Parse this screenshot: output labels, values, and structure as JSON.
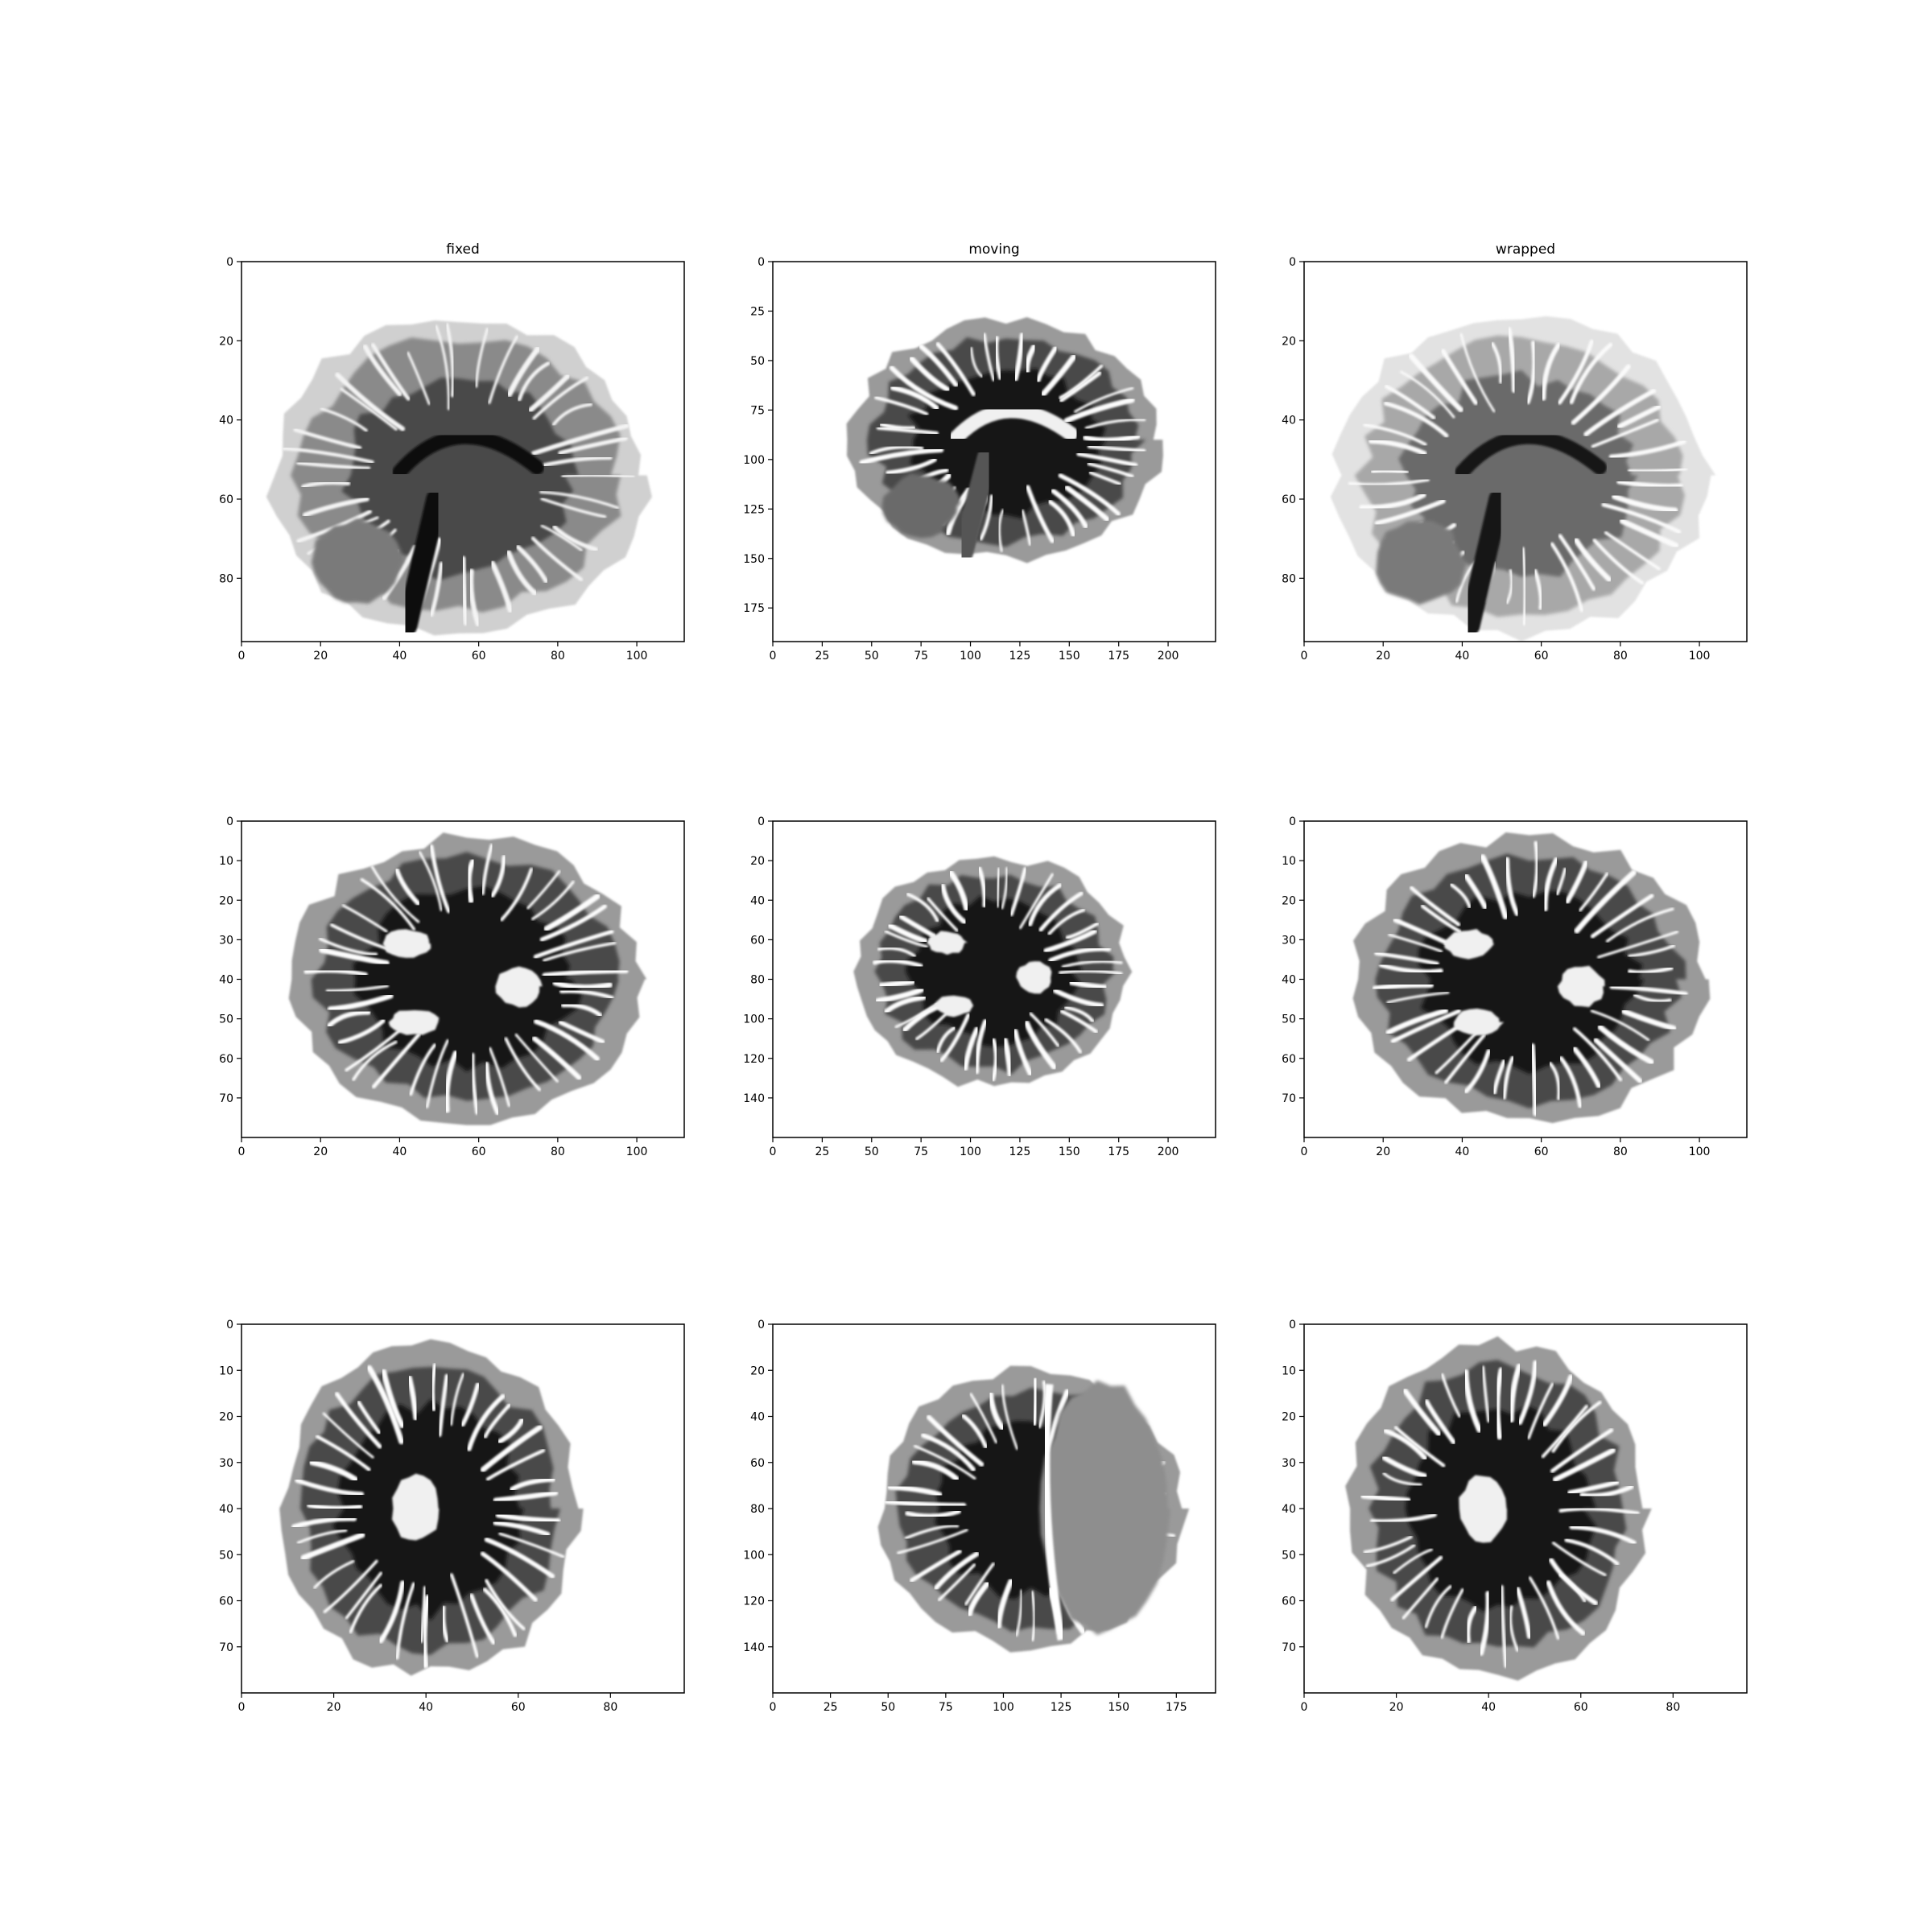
{
  "chart_data": [
    {
      "type": "image",
      "title": "fixed",
      "xlim": [
        0,
        112
      ],
      "ylim": [
        96,
        0
      ],
      "xticks": [
        0,
        20,
        40,
        60,
        80,
        100
      ],
      "yticks": [
        0,
        20,
        40,
        60,
        80
      ],
      "xlabel": "",
      "ylabel": "",
      "content": {
        "view": "sagittal",
        "contrast": "t1",
        "center": [
          55,
          54
        ],
        "radius": [
          47,
          40
        ]
      }
    },
    {
      "type": "image",
      "title": "moving",
      "xlim": [
        0,
        224
      ],
      "ylim": [
        192,
        0
      ],
      "xticks": [
        0,
        25,
        50,
        75,
        100,
        125,
        150,
        175,
        200
      ],
      "yticks": [
        0,
        25,
        50,
        75,
        100,
        125,
        150,
        175
      ],
      "xlabel": "",
      "ylabel": "",
      "content": {
        "view": "sagittal",
        "contrast": "t2",
        "center": [
          118,
          90
        ],
        "radius": [
          78,
          60
        ]
      }
    },
    {
      "type": "image",
      "title": "wrapped",
      "xlim": [
        0,
        112
      ],
      "ylim": [
        96,
        0
      ],
      "xticks": [
        0,
        20,
        40,
        60,
        80,
        100
      ],
      "yticks": [
        0,
        20,
        40,
        60,
        80
      ],
      "xlabel": "",
      "ylabel": "",
      "content": {
        "view": "sagittal",
        "contrast": "t1-light",
        "center": [
          55,
          54
        ],
        "radius": [
          47,
          40
        ]
      }
    },
    {
      "type": "image",
      "title": "",
      "xlim": [
        0,
        112
      ],
      "ylim": [
        80,
        0
      ],
      "xticks": [
        0,
        20,
        40,
        60,
        80,
        100
      ],
      "yticks": [
        0,
        10,
        20,
        30,
        40,
        50,
        60,
        70
      ],
      "xlabel": "",
      "ylabel": "",
      "content": {
        "view": "axial",
        "contrast": "t2",
        "center": [
          57,
          40
        ],
        "radius": [
          44,
          36
        ]
      }
    },
    {
      "type": "image",
      "title": "",
      "xlim": [
        0,
        224
      ],
      "ylim": [
        160,
        0
      ],
      "xticks": [
        0,
        25,
        50,
        75,
        100,
        125,
        150,
        175,
        200
      ],
      "yticks": [
        0,
        20,
        40,
        60,
        80,
        100,
        120,
        140
      ],
      "xlabel": "",
      "ylabel": "",
      "content": {
        "view": "axial",
        "contrast": "t2",
        "center": [
          112,
          76
        ],
        "radius": [
          68,
          58
        ]
      }
    },
    {
      "type": "image",
      "title": "",
      "xlim": [
        0,
        112
      ],
      "ylim": [
        80,
        0
      ],
      "xticks": [
        0,
        20,
        40,
        60,
        80,
        100
      ],
      "yticks": [
        0,
        10,
        20,
        30,
        40,
        50,
        60,
        70
      ],
      "xlabel": "",
      "ylabel": "",
      "content": {
        "view": "axial",
        "contrast": "t2",
        "center": [
          57,
          40
        ],
        "radius": [
          44,
          36
        ]
      }
    },
    {
      "type": "image",
      "title": "",
      "xlim": [
        0,
        96
      ],
      "ylim": [
        80,
        0
      ],
      "xticks": [
        0,
        20,
        40,
        60,
        80
      ],
      "yticks": [
        0,
        10,
        20,
        30,
        40,
        50,
        60,
        70
      ],
      "xlabel": "",
      "ylabel": "",
      "content": {
        "view": "coronal",
        "contrast": "t2",
        "center": [
          41,
          40
        ],
        "radius": [
          32,
          36
        ]
      }
    },
    {
      "type": "image",
      "title": "",
      "xlim": [
        0,
        192
      ],
      "ylim": [
        160,
        0
      ],
      "xticks": [
        0,
        25,
        50,
        75,
        100,
        125,
        150,
        175
      ],
      "yticks": [
        0,
        20,
        40,
        60,
        80,
        100,
        120,
        140
      ],
      "xlabel": "",
      "ylabel": "",
      "content": {
        "view": "coronal-cerebellum",
        "contrast": "t2",
        "center": [
          112,
          80
        ],
        "radius": [
          66,
          60
        ]
      }
    },
    {
      "type": "image",
      "title": "",
      "xlim": [
        0,
        96
      ],
      "ylim": [
        80,
        0
      ],
      "xticks": [
        0,
        20,
        40,
        60,
        80
      ],
      "yticks": [
        0,
        10,
        20,
        30,
        40,
        50,
        60,
        70
      ],
      "xlabel": "",
      "ylabel": "",
      "content": {
        "view": "coronal",
        "contrast": "t2",
        "center": [
          42,
          40
        ],
        "radius": [
          32,
          36
        ]
      }
    }
  ]
}
